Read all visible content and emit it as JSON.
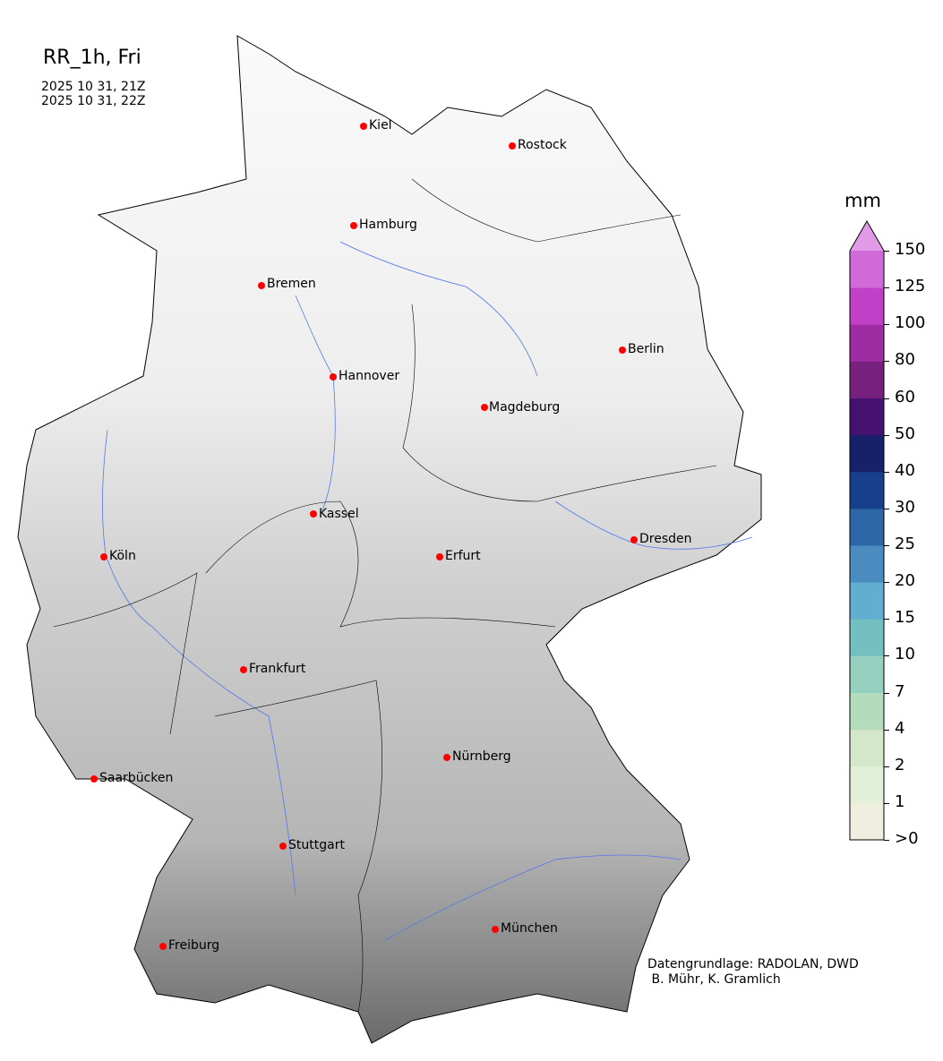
{
  "title": "RR_1h, Fri",
  "time_start": "2025 10 31, 21Z",
  "time_end": "2025 10 31, 22Z",
  "cities": [
    "Kiel",
    "Rostock",
    "Hamburg",
    "Bremen",
    "Berlin",
    "Hannover",
    "Magdeburg",
    "Kassel",
    "Köln",
    "Erfurt",
    "Dresden",
    "Frankfurt",
    "Nürnberg",
    "Saarbücken",
    "Stuttgart",
    "München",
    "Freiburg"
  ],
  "colorbar": {
    "unit": "mm",
    "ticks": [
      ">0",
      "1",
      "2",
      "4",
      "7",
      "10",
      "15",
      "20",
      "25",
      "30",
      "40",
      "50",
      "60",
      "80",
      "100",
      "125",
      "150"
    ],
    "colors": [
      "#f0efdf",
      "#e3f0d8",
      "#d2e8c8",
      "#b4dcbc",
      "#96d1c0",
      "#74c0c0",
      "#62aed0",
      "#4a8cbf",
      "#2d67a7",
      "#173f8c",
      "#17216a",
      "#461272",
      "#77207e",
      "#9e2ca3",
      "#c041c8",
      "#d06ad8",
      "#e09ae6"
    ]
  },
  "credit": "Datengrundlage: RADOLAN, DWD\n B. Mühr, K. Gramlich"
}
